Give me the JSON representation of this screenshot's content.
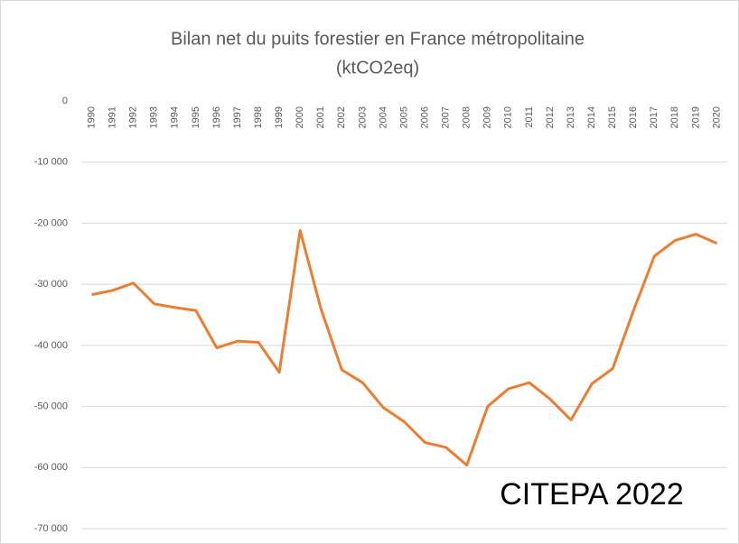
{
  "chart_data": {
    "type": "line",
    "title": [
      "Bilan net du puits forestier en France métropolitaine",
      "(ktCO2eq)"
    ],
    "annotation": "CITEPA 2022",
    "categories": [
      "1990",
      "1991",
      "1992",
      "1993",
      "1994",
      "1995",
      "1996",
      "1997",
      "1998",
      "1999",
      "2000",
      "2001",
      "2002",
      "2003",
      "2004",
      "2005",
      "2006",
      "2007",
      "2008",
      "2009",
      "2010",
      "2011",
      "2012",
      "2013",
      "2014",
      "2015",
      "2016",
      "2017",
      "2018",
      "2019",
      "2020"
    ],
    "series": [
      {
        "name": "Bilan net",
        "color": "#ed7d31",
        "values": [
          -31700,
          -31000,
          -29800,
          -33200,
          -33800,
          -34300,
          -40400,
          -39300,
          -39500,
          -44400,
          -21200,
          -34000,
          -44000,
          -46100,
          -50200,
          -52500,
          -55900,
          -56700,
          -59600,
          -50000,
          -47100,
          -46100,
          -48800,
          -52200,
          -46300,
          -43800,
          -34300,
          -25400,
          -22800,
          -21800,
          -23300
        ]
      }
    ],
    "ylim": [
      -70000,
      0
    ],
    "yticks": [
      0,
      {
        "value": -10000,
        "label": "-10 000"
      },
      {
        "value": -20000,
        "label": "-20 000"
      },
      {
        "value": -30000,
        "label": "-30 000"
      },
      {
        "value": -40000,
        "label": "-40 000"
      },
      {
        "value": -50000,
        "label": "-50 000"
      },
      {
        "value": -60000,
        "label": "-60 000"
      },
      {
        "value": -70000,
        "label": "-70 000"
      }
    ],
    "grid": true
  }
}
